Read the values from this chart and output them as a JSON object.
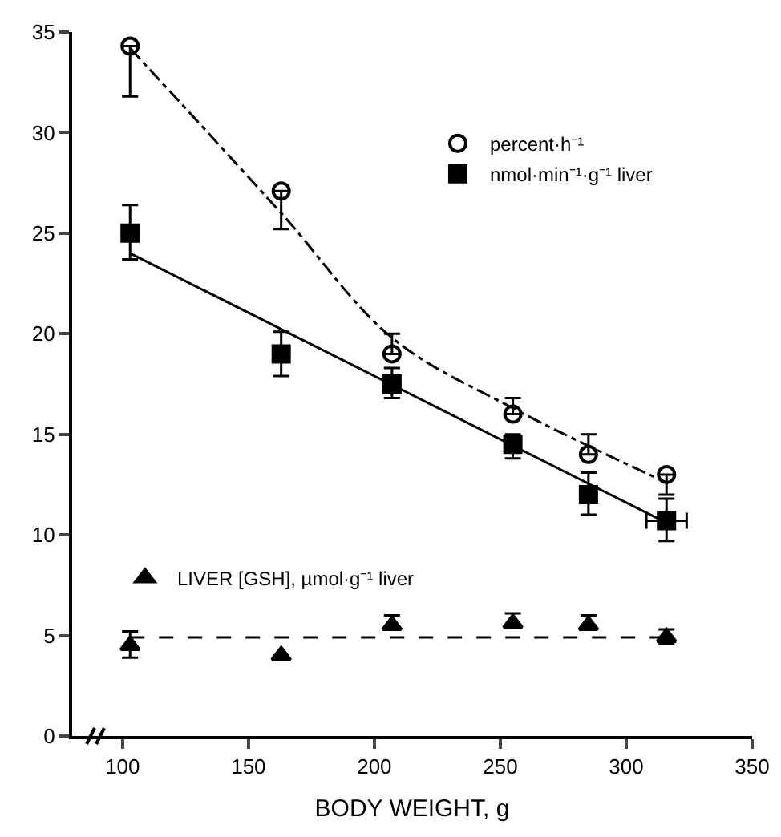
{
  "chart_data": {
    "type": "scatter",
    "xlabel": "BODY WEIGHT, g",
    "x": [
      103,
      163,
      207,
      255,
      285,
      316
    ],
    "xlim": [
      80,
      350
    ],
    "xticks": [
      100,
      150,
      200,
      250,
      300,
      350
    ],
    "ylim": [
      0,
      35
    ],
    "yticks": [
      0,
      5,
      10,
      15,
      20,
      25,
      30,
      35
    ],
    "grid": false,
    "legend": "top right",
    "series": [
      {
        "name": "percent·h⁻¹",
        "color": "#000000",
        "marker": "circle-open",
        "values": [
          34.3,
          27.1,
          19,
          16,
          14,
          13
        ],
        "errors": [
          [
            31.8,
            34.3
          ],
          [
            25.2,
            27.1
          ],
          [
            19,
            20
          ],
          [
            16,
            16.8
          ],
          [
            14,
            15
          ],
          [
            12,
            13
          ]
        ]
      },
      {
        "name": "nmol·min⁻¹·g⁻¹ liver",
        "color": "#000000",
        "marker": "square",
        "values": [
          25,
          19,
          17.5,
          14.5,
          12,
          10.7
        ],
        "errors": [
          [
            23.7,
            26.4
          ],
          [
            17.9,
            20.1
          ],
          [
            16.8,
            18.3
          ],
          [
            13.8,
            15
          ],
          [
            11,
            13.1
          ],
          [
            9.7,
            11.8
          ]
        ],
        "xerrors": [
          null,
          null,
          null,
          null,
          null,
          8
        ]
      },
      {
        "name": "LIVER [GSH], µmol·g⁻¹ liver",
        "color": "#000000",
        "marker": "triangle",
        "values": [
          4.5,
          4,
          5.5,
          5.6,
          5.5,
          4.9
        ],
        "errors": [
          [
            3.9,
            5.2
          ],
          null,
          [
            5.4,
            6
          ],
          [
            5.5,
            6.1
          ],
          [
            5.5,
            6
          ],
          [
            4.6,
            5.3
          ]
        ]
      },
      {
        "type": "line",
        "color": "#000000",
        "marker": "none",
        "line_style": "dashdot",
        "x": [
          103,
          163,
          207,
          255,
          316
        ],
        "values": [
          34.2,
          26,
          19.8,
          16.3,
          12.6
        ]
      },
      {
        "type": "line",
        "color": "#000000",
        "marker": "none",
        "line_style": "solid",
        "x": [
          103,
          316
        ],
        "values": [
          24,
          10.6
        ]
      },
      {
        "type": "line",
        "color": "#000000",
        "line_style": "dashed",
        "x": [
          103,
          316
        ],
        "values": [
          4.9,
          4.9
        ]
      }
    ]
  }
}
